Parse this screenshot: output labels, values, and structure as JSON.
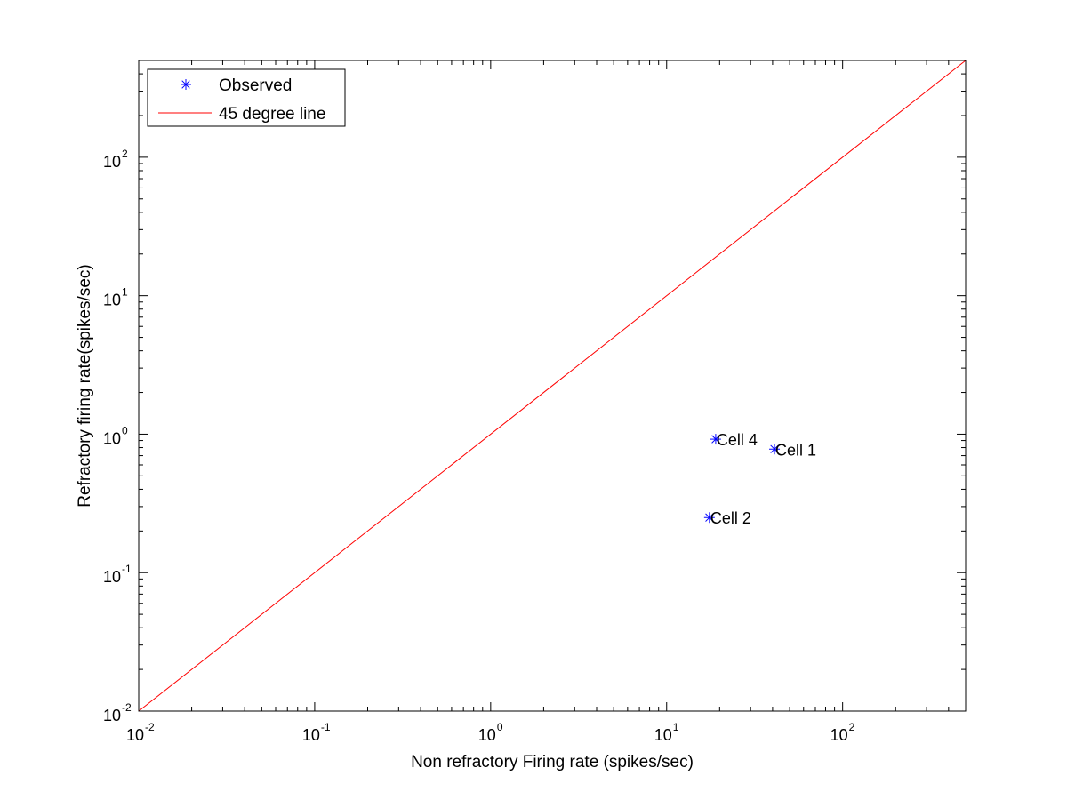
{
  "chart_data": {
    "type": "scatter",
    "xscale": "log",
    "yscale": "log",
    "xlim": [
      0.01,
      500
    ],
    "ylim": [
      0.01,
      500
    ],
    "xlabel": "Non refractory Firing rate (spikes/sec)",
    "ylabel": "Refractory firing rate(spikes/sec)",
    "x_ticks": [
      {
        "value": 0.01,
        "base": "10",
        "exp": "-2"
      },
      {
        "value": 0.1,
        "base": "10",
        "exp": "-1"
      },
      {
        "value": 1,
        "base": "10",
        "exp": "0"
      },
      {
        "value": 10,
        "base": "10",
        "exp": "1"
      },
      {
        "value": 100,
        "base": "10",
        "exp": "2"
      }
    ],
    "y_ticks": [
      {
        "value": 0.01,
        "base": "10",
        "exp": "-2"
      },
      {
        "value": 0.1,
        "base": "10",
        "exp": "-1"
      },
      {
        "value": 1,
        "base": "10",
        "exp": "0"
      },
      {
        "value": 10,
        "base": "10",
        "exp": "1"
      },
      {
        "value": 100,
        "base": "10",
        "exp": "2"
      }
    ],
    "grid": false,
    "legend": {
      "position": "top-left",
      "entries": [
        {
          "label": "Observed",
          "marker": "asterisk",
          "color": "#0000ff"
        },
        {
          "label": "45 degree line",
          "marker": "line",
          "color": "#ff0000"
        }
      ]
    },
    "series": [
      {
        "name": "Observed",
        "marker": "asterisk",
        "color": "#0000ff",
        "points": [
          {
            "x": 41,
            "y": 0.78,
            "label": "Cell 1"
          },
          {
            "x": 17.5,
            "y": 0.25,
            "label": "Cell 2"
          },
          {
            "x": 19,
            "y": 0.92,
            "label": "Cell 4"
          }
        ]
      },
      {
        "name": "45 degree line",
        "marker": "line",
        "color": "#ff0000",
        "x": [
          0.01,
          500
        ],
        "y": [
          0.01,
          500
        ]
      }
    ]
  }
}
